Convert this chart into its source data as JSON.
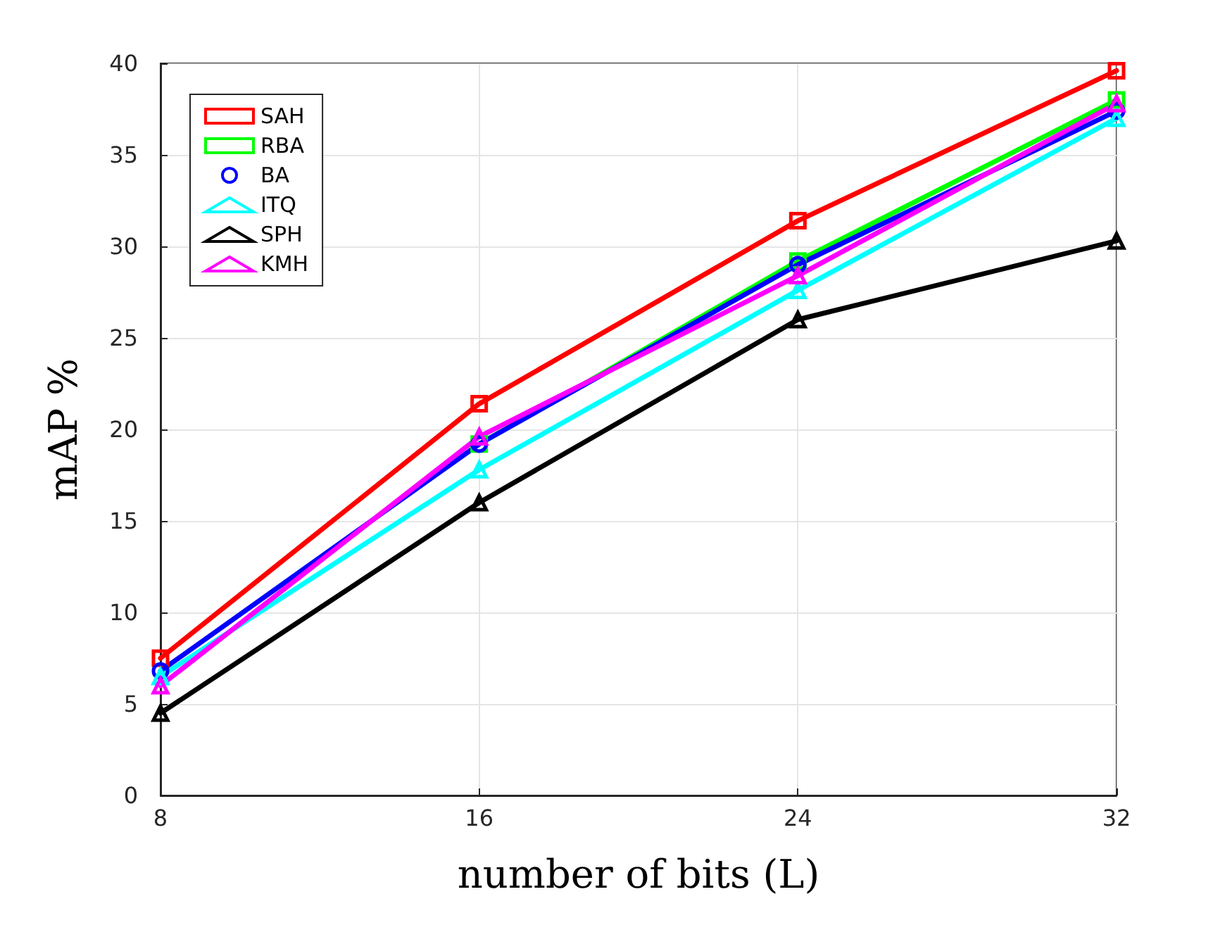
{
  "chart_data": {
    "type": "line",
    "xlabel": "number of bits (L)",
    "ylabel": "mAP %",
    "x": [
      8,
      16,
      24,
      32
    ],
    "xlim": [
      8,
      32
    ],
    "xticks": [
      8,
      16,
      24,
      32
    ],
    "ylim": [
      0,
      40
    ],
    "yticks": [
      0,
      5,
      10,
      15,
      20,
      25,
      30,
      35,
      40
    ],
    "grid": true,
    "legend": "top left",
    "line_style": "solid",
    "series": [
      {
        "name": "SAH",
        "color": "#ff0000",
        "marker": "square",
        "values": [
          7.5,
          21.4,
          31.4,
          39.6
        ]
      },
      {
        "name": "RBA",
        "color": "#00ff00",
        "marker": "square",
        "values": [
          null,
          19.2,
          29.2,
          38.0
        ]
      },
      {
        "name": "BA",
        "color": "#0000ff",
        "marker": "circle",
        "values": [
          6.8,
          19.2,
          29.0,
          37.4
        ]
      },
      {
        "name": "ITQ",
        "color": "#00ffff",
        "marker": "triangle",
        "values": [
          6.5,
          17.8,
          27.6,
          37.0
        ]
      },
      {
        "name": "SPH",
        "color": "#000000",
        "marker": "triangle",
        "values": [
          4.5,
          16.0,
          26.0,
          30.3
        ]
      },
      {
        "name": "KMH",
        "color": "#ff00ff",
        "marker": "triangle",
        "values": [
          6.0,
          19.6,
          28.4,
          37.8
        ]
      }
    ]
  }
}
